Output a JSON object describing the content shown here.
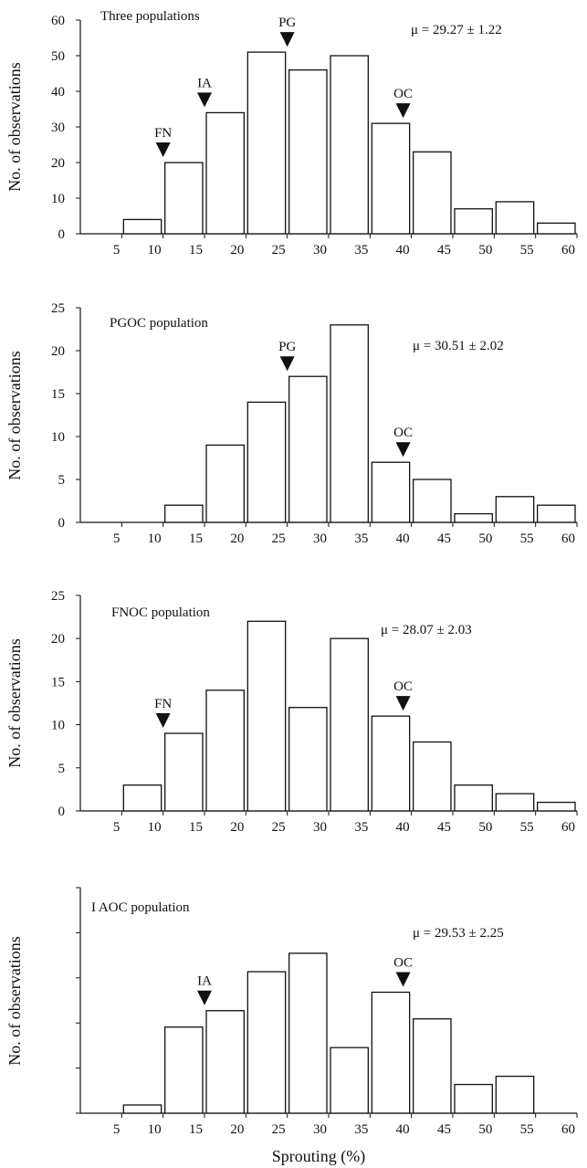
{
  "figure": {
    "xlabel": "Sprouting (%)"
  },
  "chart_data": [
    {
      "type": "bar",
      "title": "Three populations",
      "mean_text": "μ = 29.27 ± 1.22",
      "ylabel": "No. of observations",
      "x_ticks": [
        5,
        10,
        15,
        20,
        25,
        30,
        35,
        40,
        45,
        50,
        55,
        60
      ],
      "y_ticks": [
        0,
        10,
        20,
        30,
        40,
        50,
        60
      ],
      "xlim": [
        0,
        60
      ],
      "ylim": [
        0,
        60
      ],
      "bins": [
        [
          5,
          10
        ],
        [
          10,
          15
        ],
        [
          15,
          20
        ],
        [
          20,
          25
        ],
        [
          25,
          30
        ],
        [
          30,
          35
        ],
        [
          35,
          40
        ],
        [
          40,
          45
        ],
        [
          45,
          50
        ],
        [
          50,
          55
        ],
        [
          55,
          60
        ]
      ],
      "values": [
        4,
        20,
        34,
        51,
        46,
        50,
        31,
        23,
        7,
        9,
        3
      ],
      "markers": [
        {
          "label": "FN",
          "x": 10
        },
        {
          "label": "IA",
          "x": 15
        },
        {
          "label": "PG",
          "x": 25
        },
        {
          "label": "OC",
          "x": 39
        }
      ]
    },
    {
      "type": "bar",
      "title": "PGOC population",
      "mean_text": "μ = 30.51 ± 2.02",
      "ylabel": "No. of observations",
      "x_ticks": [
        5,
        10,
        15,
        20,
        25,
        30,
        35,
        40,
        45,
        50,
        55,
        60
      ],
      "y_ticks": [
        0,
        5,
        10,
        15,
        20,
        25
      ],
      "xlim": [
        0,
        60
      ],
      "ylim": [
        0,
        25
      ],
      "bins": [
        [
          10,
          15
        ],
        [
          15,
          20
        ],
        [
          20,
          25
        ],
        [
          25,
          30
        ],
        [
          30,
          35
        ],
        [
          35,
          40
        ],
        [
          40,
          45
        ],
        [
          45,
          50
        ],
        [
          50,
          55
        ],
        [
          55,
          60
        ]
      ],
      "values": [
        2,
        9,
        14,
        17,
        23,
        7,
        5,
        1,
        3,
        2
      ],
      "markers": [
        {
          "label": "PG",
          "x": 25
        },
        {
          "label": "OC",
          "x": 39
        }
      ]
    },
    {
      "type": "bar",
      "title": "FNOC population",
      "mean_text": "μ = 28.07 ± 2.03",
      "ylabel": "No. of observations",
      "x_ticks": [
        5,
        10,
        15,
        20,
        25,
        30,
        35,
        40,
        45,
        50,
        55,
        60
      ],
      "y_ticks": [
        0,
        5,
        10,
        15,
        20,
        25
      ],
      "xlim": [
        0,
        60
      ],
      "ylim": [
        0,
        25
      ],
      "bins": [
        [
          5,
          10
        ],
        [
          10,
          15
        ],
        [
          15,
          20
        ],
        [
          20,
          25
        ],
        [
          25,
          30
        ],
        [
          30,
          35
        ],
        [
          35,
          40
        ],
        [
          40,
          45
        ],
        [
          45,
          50
        ],
        [
          50,
          55
        ],
        [
          55,
          60
        ]
      ],
      "values": [
        3,
        9,
        14,
        22,
        12,
        20,
        11,
        8,
        3,
        2,
        1
      ],
      "markers": [
        {
          "label": "FN",
          "x": 10
        },
        {
          "label": "OC",
          "x": 39
        }
      ]
    },
    {
      "type": "bar",
      "title": "I AOC population",
      "mean_text": "μ = 29.53 ± 2.25",
      "ylabel": "No. of observations",
      "x_ticks": [
        5,
        10,
        15,
        20,
        25,
        30,
        35,
        40,
        45,
        50,
        55,
        60
      ],
      "y_ticks": [],
      "xlim": [
        0,
        60
      ],
      "ylim": [
        0,
        11
      ],
      "bins": [
        [
          5,
          10
        ],
        [
          10,
          15
        ],
        [
          15,
          20
        ],
        [
          20,
          25
        ],
        [
          25,
          30
        ],
        [
          30,
          35
        ],
        [
          35,
          40
        ],
        [
          40,
          45
        ],
        [
          45,
          50
        ],
        [
          50,
          55
        ]
      ],
      "values": [
        0.4,
        4.2,
        5.0,
        6.9,
        7.8,
        3.2,
        5.9,
        4.6,
        1.4,
        1.8
      ],
      "markers": [
        {
          "label": "IA",
          "x": 15
        },
        {
          "label": "OC",
          "x": 39
        }
      ]
    }
  ]
}
